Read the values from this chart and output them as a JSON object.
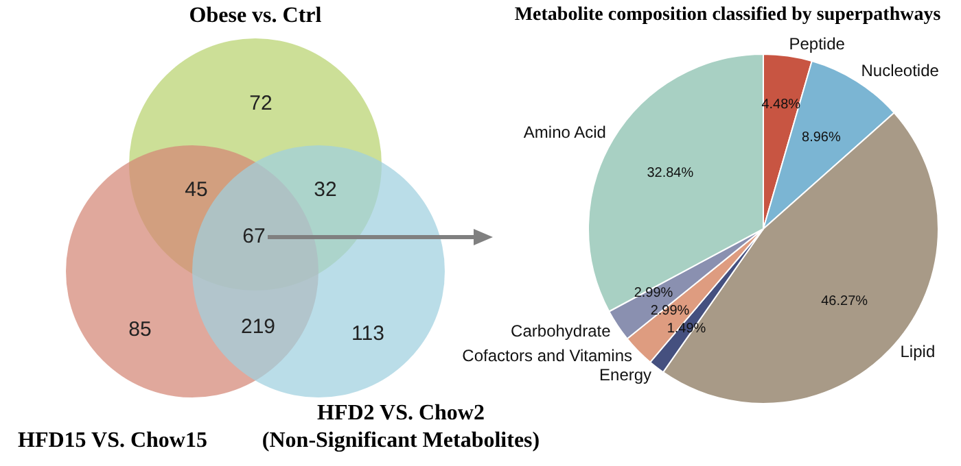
{
  "chart_data": [
    {
      "type": "other",
      "annotations": [
        "Obese vs. Ctrl",
        "HFD15 VS. Chow15",
        "HFD2 VS. Chow2 (Non-Significant Metabolites)",
        "72",
        "85",
        "113",
        "45",
        "32",
        "219",
        "67"
      ],
      "legend": false
    },
    {
      "type": "pie",
      "title": "Metabolite composition classified by superpathways",
      "categories": [
        "Peptide",
        "Nucleotide",
        "Lipid",
        "Energy",
        "Cofactors and Vitamins",
        "Carbohydrate",
        "Amino Acid"
      ],
      "values": [
        4.48,
        8.96,
        46.27,
        1.49,
        2.99,
        2.99,
        32.84
      ],
      "value_labels": [
        "4.48%",
        "8.96%",
        "46.27%",
        "1.49%",
        "2.99%",
        "2.99%",
        "32.84%"
      ],
      "colors": [
        "#c85542",
        "#7bb5d3",
        "#a89a87",
        "#45507f",
        "#de9c80",
        "#8a90b0",
        "#a8d0c3"
      ],
      "legend": false
    }
  ]
}
